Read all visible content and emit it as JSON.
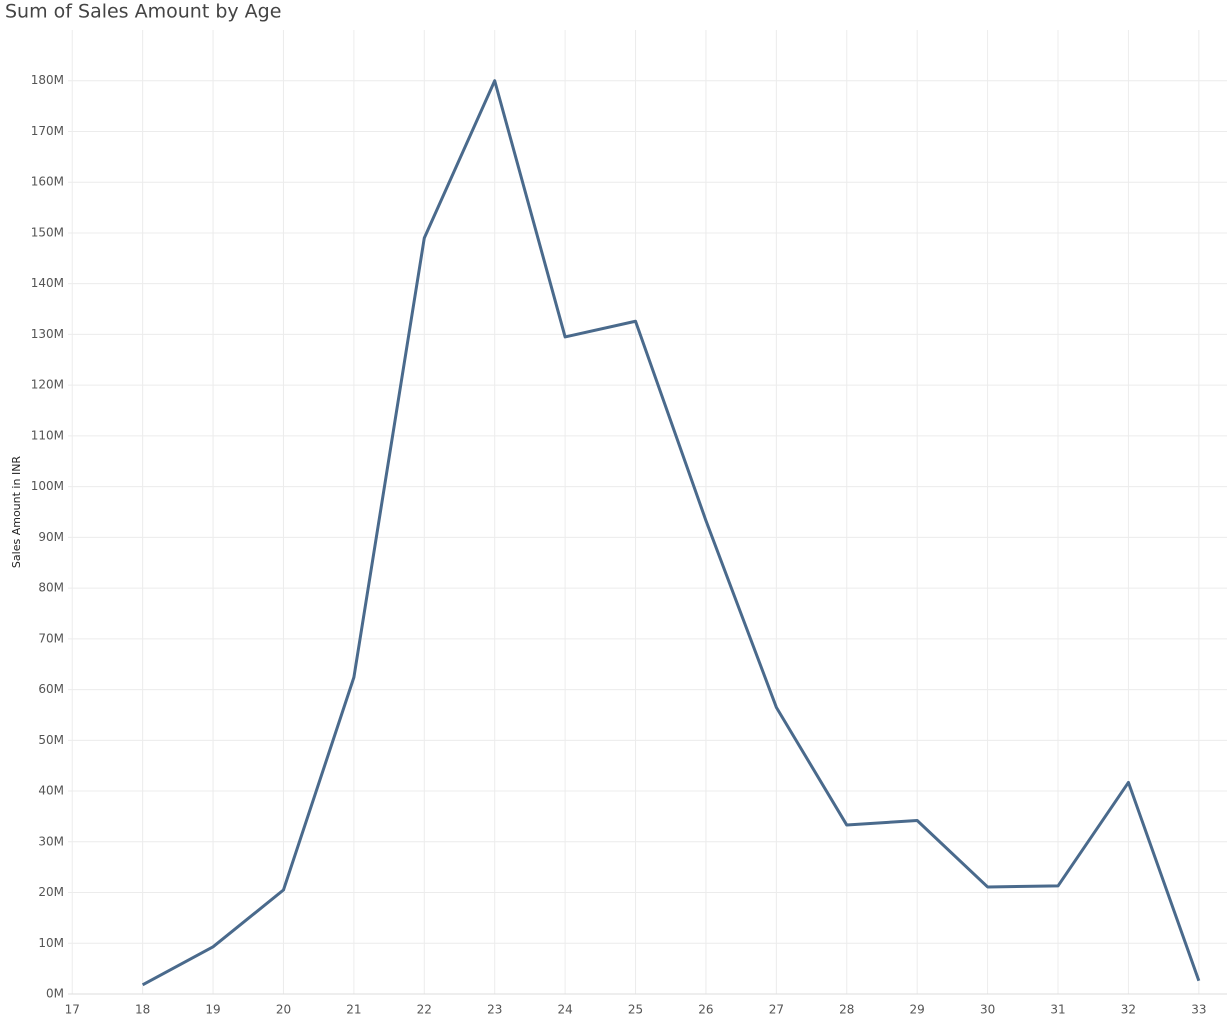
{
  "chart_data": {
    "type": "line",
    "title": "Sum of Sales Amount by Age",
    "y_label": "Sales Amount in INR",
    "x": [
      18,
      19,
      20,
      21,
      22,
      23,
      24,
      25,
      26,
      27,
      28,
      29,
      30,
      31,
      32,
      33
    ],
    "values": [
      1800000,
      9300000,
      20500000,
      62400000,
      149000000,
      180000000,
      129500000,
      132600000,
      93300000,
      56500000,
      33300000,
      34200000,
      21100000,
      21300000,
      41700000,
      2600000
    ],
    "color": "#4a6a8c",
    "xlim": [
      16.94,
      33.4
    ],
    "xticks": [
      17,
      18,
      19,
      20,
      21,
      22,
      23,
      24,
      25,
      26,
      27,
      28,
      29,
      30,
      31,
      32,
      33
    ],
    "ylim": [
      0,
      190000000
    ],
    "yticks": [
      {
        "value": 0,
        "label": "0M"
      },
      {
        "value": 10000000,
        "label": "10M"
      },
      {
        "value": 20000000,
        "label": "20M"
      },
      {
        "value": 30000000,
        "label": "30M"
      },
      {
        "value": 40000000,
        "label": "40M"
      },
      {
        "value": 50000000,
        "label": "50M"
      },
      {
        "value": 60000000,
        "label": "60M"
      },
      {
        "value": 70000000,
        "label": "70M"
      },
      {
        "value": 80000000,
        "label": "80M"
      },
      {
        "value": 90000000,
        "label": "90M"
      },
      {
        "value": 100000000,
        "label": "100M"
      },
      {
        "value": 110000000,
        "label": "110M"
      },
      {
        "value": 120000000,
        "label": "120M"
      },
      {
        "value": 130000000,
        "label": "130M"
      },
      {
        "value": 140000000,
        "label": "140M"
      },
      {
        "value": 150000000,
        "label": "150M"
      },
      {
        "value": 160000000,
        "label": "160M"
      },
      {
        "value": 170000000,
        "label": "170M"
      },
      {
        "value": 180000000,
        "label": "180M"
      }
    ],
    "grid": true
  }
}
